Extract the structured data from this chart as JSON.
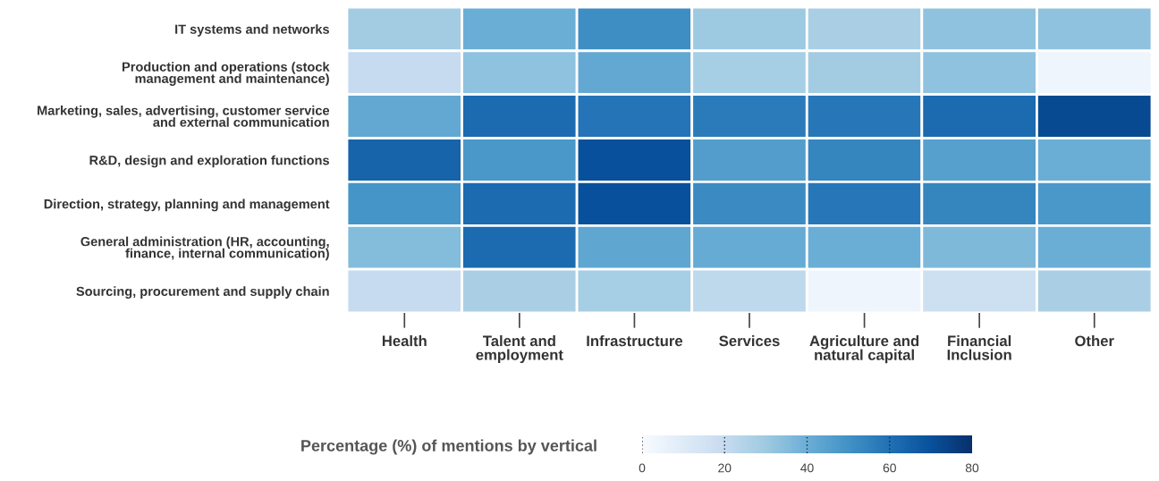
{
  "chart_data": {
    "type": "heatmap",
    "clabel": "Percentage (%) of mentions by vertical",
    "categories": [
      "Health",
      "Talent and\nemployment",
      "Infrastructure",
      "Services",
      "Agriculture and\nnatural capital",
      "Financial\nInclusion",
      "Other"
    ],
    "y_categories": [
      "IT systems and networks",
      "Production and operations (stock\nmanagement and maintenance)",
      "Marketing, sales, advertising, customer service\nand external communication",
      "R&D, design and exploration functions",
      "Direction, strategy, planning and management",
      "General administration (HR, accounting,\nfinance, internal communication)",
      "Sourcing, procurement and supply chain"
    ],
    "cells": [
      [
        29,
        40,
        51,
        30,
        27,
        33,
        33
      ],
      [
        20,
        33,
        42,
        28,
        29,
        33,
        4
      ],
      [
        42,
        62,
        59,
        57,
        58,
        62,
        72
      ],
      [
        64,
        48,
        70,
        46,
        54,
        45,
        40
      ],
      [
        49,
        62,
        70,
        52,
        58,
        54,
        48
      ],
      [
        35,
        62,
        43,
        41,
        40,
        36,
        40
      ],
      [
        20,
        27,
        28,
        22,
        4,
        17,
        27
      ]
    ],
    "clim": [
      0,
      80
    ],
    "cticks": [
      0,
      20,
      40,
      60,
      80
    ]
  }
}
